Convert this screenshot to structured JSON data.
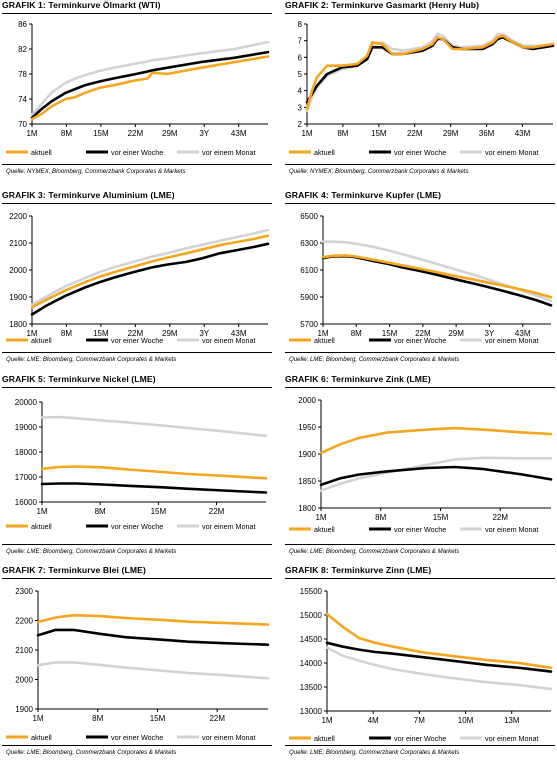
{
  "colors": {
    "aktuell": "#f5a51e",
    "vor_einer_woche": "#000000",
    "vor_einem_monat": "#d3d3d3"
  },
  "legend": [
    "aktuell",
    "vor einer Woche",
    "vor einem Monat"
  ],
  "panels": [
    {
      "title": "GRAFIK 1: Terminkurve Ölmarkt (WTI)",
      "source": "Quelle: NYMEX; Bloomberg, Commerzbank Corporates & Markets"
    },
    {
      "title": "GRAFIK 2: Terminkurve Gasmarkt (Henry Hub)",
      "source": "Quelle: NYMEX; Bloomberg, Commerzbank Corporates & Markets"
    },
    {
      "title": "GRAFIK 3: Terminkurve Aluminium (LME)",
      "source": "Quelle: LME; Bloomberg, Commerzbank Corporates & Markets"
    },
    {
      "title": "GRAFIK 4: Terminkurve Kupfer (LME)",
      "source": "Quelle: LME; Bloomberg, Commerzbank Corporates & Markets"
    },
    {
      "title": "GRAFIK 5: Terminkurve Nickel (LME)",
      "source": "Quelle: LME; Bloomberg, Commerzbank Corporates & Markets"
    },
    {
      "title": "GRAFIK 6: Terminkurve Zink (LME)",
      "source": "Quelle: LME; Bloomberg, Commerzbank Corporates & Markets"
    },
    {
      "title": "GRAFIK 7: Terminkurve Blei (LME)",
      "source": "Quelle: LME; Bloomberg, Commerzbank Corporates & Markets"
    },
    {
      "title": "GRAFIK 8: Terminkurve Zinn (LME)",
      "source": "Quelle: LME; Bloomberg, Commerzbank Corporates & Markets"
    }
  ],
  "chart_data": [
    {
      "type": "line",
      "title": "Terminkurve Ölmarkt (WTI)",
      "ylim": [
        70,
        86
      ],
      "yticks": [
        70,
        74,
        78,
        82,
        86
      ],
      "xticks": [
        "1M",
        "8M",
        "15M",
        "22M",
        "29M",
        "3Y",
        "43M"
      ],
      "x": [
        1,
        3,
        5,
        8,
        10,
        12,
        15,
        18,
        22,
        25,
        26,
        29,
        36,
        43,
        50
      ],
      "xlim": [
        1,
        50
      ],
      "series": [
        {
          "name": "aktuell",
          "values": [
            70.8,
            71.6,
            72.8,
            74.0,
            74.3,
            75.0,
            75.8,
            76.2,
            76.9,
            77.3,
            78.2,
            78.0,
            79.0,
            79.9,
            80.8
          ]
        },
        {
          "name": "vor einer Woche",
          "values": [
            71.0,
            72.4,
            73.6,
            75.0,
            75.6,
            76.2,
            76.8,
            77.3,
            77.9,
            78.4,
            78.6,
            79.0,
            79.9,
            80.6,
            81.5
          ]
        },
        {
          "name": "vor einem Monat",
          "values": [
            71.5,
            73.2,
            75.0,
            76.6,
            77.3,
            77.8,
            78.5,
            79.0,
            79.6,
            80.0,
            80.2,
            80.5,
            81.3,
            82.0,
            83.1
          ]
        }
      ]
    },
    {
      "type": "line",
      "title": "Terminkurve Gasmarkt (Henry Hub)",
      "ylim": [
        2,
        8
      ],
      "yticks": [
        2,
        3,
        4,
        5,
        6,
        7,
        8
      ],
      "xticks": [
        "1M",
        "8M",
        "15M",
        "22M",
        "29M",
        "36M",
        "43M"
      ],
      "x": [
        1,
        2,
        3,
        5,
        8,
        11,
        13,
        14,
        16,
        18,
        20,
        24,
        26,
        27,
        28,
        30,
        32,
        36,
        38,
        39,
        40,
        42,
        44,
        46,
        48,
        50
      ],
      "xlim": [
        1,
        50
      ],
      "series": [
        {
          "name": "aktuell",
          "values": [
            2.9,
            4.0,
            4.8,
            5.5,
            5.5,
            5.6,
            6.1,
            6.9,
            6.8,
            6.2,
            6.2,
            6.5,
            6.8,
            7.2,
            7.1,
            6.5,
            6.5,
            6.6,
            6.9,
            7.2,
            7.3,
            6.9,
            6.6,
            6.6,
            6.7,
            6.8
          ]
        },
        {
          "name": "vor einer Woche",
          "values": [
            3.3,
            3.8,
            4.3,
            5.0,
            5.4,
            5.5,
            5.9,
            6.6,
            6.6,
            6.2,
            6.2,
            6.4,
            6.7,
            7.1,
            7.1,
            6.6,
            6.5,
            6.5,
            6.8,
            7.1,
            7.2,
            6.9,
            6.6,
            6.5,
            6.6,
            6.7
          ]
        },
        {
          "name": "vor einem Monat",
          "values": [
            2.8,
            3.6,
            4.2,
            4.9,
            5.3,
            5.5,
            5.9,
            6.7,
            6.9,
            6.5,
            6.4,
            6.6,
            7.0,
            7.4,
            7.3,
            6.7,
            6.6,
            6.7,
            7.0,
            7.4,
            7.4,
            7.0,
            6.7,
            6.7,
            6.7,
            6.7
          ]
        }
      ]
    },
    {
      "type": "line",
      "title": "Terminkurve Aluminium (LME)",
      "ylim": [
        1800,
        2200
      ],
      "yticks": [
        1800,
        1900,
        2000,
        2100,
        2200
      ],
      "xticks": [
        "1M",
        "8M",
        "15M",
        "22M",
        "29M",
        "3Y",
        "43M"
      ],
      "x": [
        1,
        4,
        8,
        12,
        15,
        18,
        22,
        26,
        29,
        33,
        36,
        40,
        43,
        47,
        50
      ],
      "xlim": [
        1,
        50
      ],
      "series": [
        {
          "name": "aktuell",
          "values": [
            1862,
            1890,
            1925,
            1955,
            1975,
            1992,
            2012,
            2032,
            2045,
            2062,
            2075,
            2092,
            2102,
            2115,
            2127
          ]
        },
        {
          "name": "vor einer Woche",
          "values": [
            1835,
            1868,
            1905,
            1935,
            1955,
            1972,
            1992,
            2010,
            2020,
            2030,
            2042,
            2062,
            2072,
            2085,
            2097
          ]
        },
        {
          "name": "vor einem Monat",
          "values": [
            1872,
            1902,
            1940,
            1970,
            1992,
            2010,
            2030,
            2050,
            2062,
            2080,
            2092,
            2108,
            2120,
            2135,
            2148
          ]
        }
      ]
    },
    {
      "type": "line",
      "title": "Terminkurve Kupfer (LME)",
      "ylim": [
        5700,
        6500
      ],
      "yticks": [
        5700,
        5900,
        6100,
        6300,
        6500
      ],
      "xticks": [
        "1M",
        "8M",
        "15M",
        "22M",
        "29M",
        "3Y",
        "43M"
      ],
      "x": [
        1,
        3,
        6,
        8,
        12,
        15,
        18,
        22,
        26,
        29,
        33,
        36,
        40,
        43,
        47,
        50
      ],
      "xlim": [
        1,
        50
      ],
      "series": [
        {
          "name": "aktuell",
          "values": [
            6195,
            6205,
            6208,
            6200,
            6175,
            6155,
            6135,
            6108,
            6080,
            6058,
            6032,
            6010,
            5982,
            5960,
            5928,
            5898
          ]
        },
        {
          "name": "vor einer Woche",
          "values": [
            6188,
            6200,
            6202,
            6195,
            6165,
            6145,
            6120,
            6092,
            6060,
            6035,
            6003,
            5978,
            5942,
            5915,
            5875,
            5838
          ]
        },
        {
          "name": "vor einem Monat",
          "values": [
            6310,
            6310,
            6305,
            6295,
            6270,
            6245,
            6218,
            6180,
            6140,
            6110,
            6068,
            6035,
            5990,
            5956,
            5910,
            5870
          ]
        }
      ]
    },
    {
      "type": "line",
      "title": "Terminkurve Nickel (LME)",
      "ylim": [
        16000,
        20000
      ],
      "yticks": [
        16000,
        17000,
        18000,
        19000,
        20000
      ],
      "xticks": [
        "1M",
        "8M",
        "15M",
        "22M"
      ],
      "x": [
        1,
        3,
        5,
        8,
        11,
        15,
        18,
        22,
        27
      ],
      "xlim": [
        1,
        27
      ],
      "series": [
        {
          "name": "aktuell",
          "values": [
            17330,
            17400,
            17420,
            17390,
            17300,
            17200,
            17120,
            17050,
            16950
          ]
        },
        {
          "name": "vor einer Woche",
          "values": [
            16720,
            16740,
            16740,
            16700,
            16650,
            16590,
            16530,
            16460,
            16380
          ]
        },
        {
          "name": "vor einem Monat",
          "values": [
            19380,
            19400,
            19350,
            19260,
            19180,
            19060,
            18960,
            18830,
            18650
          ]
        }
      ]
    },
    {
      "type": "line",
      "title": "Terminkurve Zink (LME)",
      "ylim": [
        1800,
        2000
      ],
      "yticks": [
        1800,
        1850,
        1900,
        1950,
        2000
      ],
      "xticks": [
        "1M",
        "8M",
        "15M",
        "22M"
      ],
      "x": [
        1,
        3,
        5,
        8,
        12,
        15,
        18,
        22,
        25
      ],
      "xlim": [
        1,
        25
      ],
      "series": [
        {
          "name": "aktuell",
          "values": [
            1902,
            1918,
            1930,
            1940,
            1945,
            1948,
            1945,
            1940,
            1937
          ]
        },
        {
          "name": "vor einer Woche",
          "values": [
            1843,
            1855,
            1862,
            1868,
            1874,
            1876,
            1872,
            1862,
            1853
          ]
        },
        {
          "name": "vor einem Monat",
          "values": [
            1832,
            1845,
            1855,
            1866,
            1880,
            1890,
            1893,
            1892,
            1892
          ]
        }
      ]
    },
    {
      "type": "line",
      "title": "Terminkurve Blei (LME)",
      "ylim": [
        1900,
        2300
      ],
      "yticks": [
        1900,
        2000,
        2100,
        2200,
        2300
      ],
      "xticks": [
        "1M",
        "8M",
        "15M",
        "22M"
      ],
      "x": [
        1,
        3,
        5,
        8,
        11,
        15,
        18,
        22,
        27
      ],
      "xlim": [
        1,
        27
      ],
      "series": [
        {
          "name": "aktuell",
          "values": [
            2195,
            2210,
            2218,
            2215,
            2208,
            2202,
            2196,
            2192,
            2186
          ]
        },
        {
          "name": "vor einer Woche",
          "values": [
            2150,
            2168,
            2168,
            2155,
            2143,
            2135,
            2128,
            2123,
            2118
          ]
        },
        {
          "name": "vor einem Monat",
          "values": [
            2048,
            2058,
            2058,
            2050,
            2040,
            2030,
            2022,
            2015,
            2004
          ]
        }
      ]
    },
    {
      "type": "line",
      "title": "Terminkurve Zinn (LME)",
      "ylim": [
        13000,
        15500
      ],
      "yticks": [
        13000,
        13500,
        14000,
        14500,
        15000,
        15500
      ],
      "xticks": [
        "1M",
        "4M",
        "7M",
        "10M",
        "13M"
      ],
      "x": [
        1,
        2,
        3,
        4,
        5,
        7,
        9,
        11,
        13,
        15
      ],
      "xlim": [
        1,
        15
      ],
      "series": [
        {
          "name": "aktuell",
          "values": [
            15020,
            14750,
            14520,
            14420,
            14350,
            14220,
            14140,
            14060,
            14000,
            13900
          ]
        },
        {
          "name": "vor einer Woche",
          "values": [
            14420,
            14340,
            14280,
            14230,
            14200,
            14120,
            14040,
            13960,
            13900,
            13820
          ]
        },
        {
          "name": "vor einem Monat",
          "values": [
            14320,
            14150,
            14050,
            13960,
            13880,
            13770,
            13680,
            13600,
            13540,
            13460
          ]
        }
      ]
    }
  ]
}
